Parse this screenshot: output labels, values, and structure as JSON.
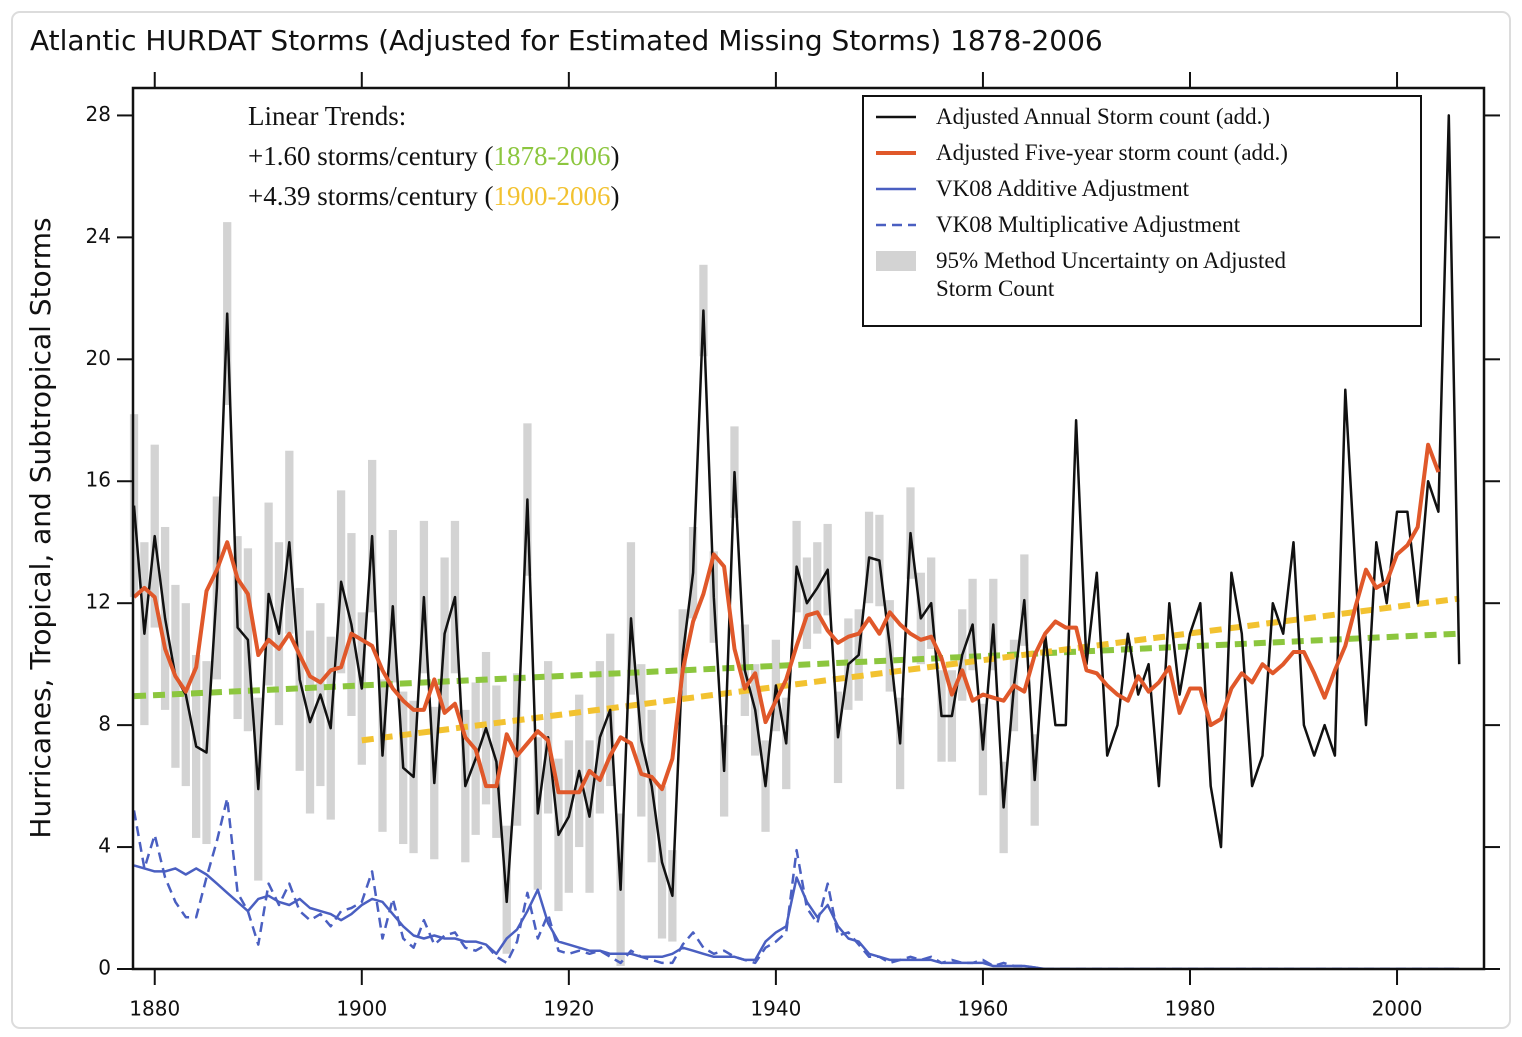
{
  "chart_data": {
    "type": "line",
    "title": "Atlantic HURDAT Storms (Adjusted for Estimated Missing Storms) 1878-2006",
    "y_label": "Hurricanes, Tropical, and Subtropical Storms",
    "xlim": [
      1877.9,
      2008.4
    ],
    "ylim": [
      0,
      28.9
    ],
    "xticks": [
      1880,
      1900,
      1920,
      1940,
      1960,
      1980,
      2000
    ],
    "yticks": [
      0,
      4,
      8,
      12,
      16,
      20,
      24,
      28
    ],
    "legend": "upper right",
    "x": [
      1878,
      1879,
      1880,
      1881,
      1882,
      1883,
      1884,
      1885,
      1886,
      1887,
      1888,
      1889,
      1890,
      1891,
      1892,
      1893,
      1894,
      1895,
      1896,
      1897,
      1898,
      1899,
      1900,
      1901,
      1902,
      1903,
      1904,
      1905,
      1906,
      1907,
      1908,
      1909,
      1910,
      1911,
      1912,
      1913,
      1914,
      1915,
      1916,
      1917,
      1918,
      1919,
      1920,
      1921,
      1922,
      1923,
      1924,
      1925,
      1926,
      1927,
      1928,
      1929,
      1930,
      1931,
      1932,
      1933,
      1934,
      1935,
      1936,
      1937,
      1938,
      1939,
      1940,
      1941,
      1942,
      1943,
      1944,
      1945,
      1946,
      1947,
      1948,
      1949,
      1950,
      1951,
      1952,
      1953,
      1954,
      1955,
      1956,
      1957,
      1958,
      1959,
      1960,
      1961,
      1962,
      1963,
      1964,
      1965,
      1966,
      1967,
      1968,
      1969,
      1970,
      1971,
      1972,
      1973,
      1974,
      1975,
      1976,
      1977,
      1978,
      1979,
      1980,
      1981,
      1982,
      1983,
      1984,
      1985,
      1986,
      1987,
      1988,
      1989,
      1990,
      1991,
      1992,
      1993,
      1994,
      1995,
      1996,
      1997,
      1998,
      1999,
      2000,
      2001,
      2002,
      2003,
      2004,
      2005,
      2006
    ],
    "uncertainty": {
      "name": "95% Method Uncertainty on Adjusted Storm Count",
      "color": "#d3d3d3",
      "high": [
        18.2,
        14,
        17.2,
        14.5,
        12.6,
        12,
        10.3,
        10.1,
        15.5,
        24.5,
        14.2,
        13.8,
        8.9,
        15.3,
        14,
        17,
        12.5,
        11.1,
        12,
        10.9,
        15.7,
        14.3,
        11.7,
        16.7,
        9.5,
        14.4,
        9.1,
        8.8,
        14.7,
        8.6,
        13.5,
        14.7,
        8.5,
        9.4,
        10.4,
        9.3,
        4.7,
        9.7,
        17.9,
        7.6,
        10.1,
        6.9,
        7.5,
        9,
        7.5,
        10.1,
        11,
        5.1,
        14,
        10,
        8.5,
        6,
        3.9,
        11.8,
        14.5,
        23.1,
        13.7,
        8,
        17.8,
        11.3,
        10,
        7.5,
        10.8,
        8.9,
        14.7,
        13.5,
        14,
        14.6,
        9.1,
        11.5,
        11.8,
        15,
        14.9,
        12.1,
        8.9,
        15.8,
        13,
        13.5,
        9.8,
        9.8,
        11.8,
        12.8,
        8.7,
        12.8,
        6.8,
        10.8,
        13.6,
        7.7,
        null,
        null,
        null,
        null,
        null,
        null,
        null,
        null,
        null,
        null,
        null,
        null,
        null,
        null,
        null,
        null,
        null,
        null,
        null,
        null,
        null,
        null,
        null,
        null,
        null,
        null,
        null,
        null,
        null,
        null,
        null,
        null,
        null,
        null,
        null,
        null,
        null,
        null,
        null,
        null,
        null
      ],
      "low": [
        12.2,
        8,
        11.2,
        8.5,
        6.6,
        6,
        4.3,
        4.1,
        9.5,
        18.5,
        8.2,
        7.8,
        2.9,
        9.3,
        8,
        11,
        6.5,
        5.1,
        6,
        4.9,
        9.7,
        8.3,
        6.7,
        11.7,
        4.5,
        9.4,
        4.1,
        3.8,
        9.7,
        3.6,
        8.5,
        9.7,
        3.5,
        4.4,
        5.4,
        4.3,
        0.5,
        4.7,
        12.9,
        2.6,
        5.1,
        1.9,
        2.5,
        4,
        2.5,
        5.1,
        6,
        0.1,
        9,
        5,
        3.5,
        1,
        0.9,
        8.8,
        11.5,
        20.1,
        10.7,
        5,
        14.8,
        8.3,
        7,
        4.5,
        7.8,
        5.9,
        11.7,
        10.5,
        11,
        11.6,
        6.1,
        8.5,
        8.8,
        12,
        11.9,
        9.1,
        5.9,
        12.8,
        10,
        10.5,
        6.8,
        6.8,
        8.8,
        9.8,
        5.7,
        9.8,
        3.8,
        7.8,
        10.6,
        4.7,
        null,
        null,
        null,
        null,
        null,
        null,
        null,
        null,
        null,
        null,
        null,
        null,
        null,
        null,
        null,
        null,
        null,
        null,
        null,
        null,
        null,
        null,
        null,
        null,
        null,
        null,
        null,
        null,
        null,
        null,
        null,
        null,
        null,
        null,
        null,
        null,
        null,
        null,
        null,
        null,
        null
      ]
    },
    "trend_lines": [
      {
        "name": "1878-2006",
        "prefix": "+1.60 storms/century (",
        "suffix": ")",
        "color": "#8cc63e",
        "x": [
          1878,
          2006
        ],
        "values": [
          8.95,
          11.0
        ]
      },
      {
        "name": "1900-2006",
        "prefix": "+4.39 storms/century (",
        "suffix": ")",
        "color": "#f2c230",
        "x": [
          1900,
          2006
        ],
        "values": [
          7.5,
          12.15
        ]
      }
    ],
    "annotation_heading": "Linear Trends:",
    "series": [
      {
        "name": "Adjusted Annual Storm count (add.)",
        "color": "#111111",
        "width": 2.5,
        "style": "solid",
        "values": [
          15.2,
          11,
          14.2,
          11.5,
          9.6,
          9,
          7.3,
          7.1,
          12.5,
          21.5,
          11.2,
          10.8,
          5.9,
          12.3,
          11,
          14,
          9.5,
          8.1,
          9,
          7.9,
          12.7,
          11.3,
          9.2,
          14.2,
          7,
          11.9,
          6.6,
          6.3,
          12.2,
          6.1,
          11,
          12.2,
          6,
          6.9,
          7.9,
          6.8,
          2.2,
          7.2,
          15.4,
          5.1,
          7.6,
          4.4,
          5,
          6.5,
          5,
          7.6,
          8.5,
          2.6,
          11.5,
          7.5,
          6,
          3.5,
          2.4,
          10.3,
          13,
          21.6,
          12.2,
          6.5,
          16.3,
          9.8,
          8.5,
          6,
          9.3,
          7.4,
          13.2,
          12,
          12.5,
          13.1,
          7.6,
          10,
          10.3,
          13.5,
          13.4,
          10.6,
          7.4,
          14.3,
          11.5,
          12,
          8.3,
          8.3,
          10.3,
          11.3,
          7.2,
          11.3,
          5.3,
          9.3,
          12.1,
          6.2,
          11,
          8,
          8,
          18,
          10,
          13,
          7,
          8,
          11,
          9,
          10,
          6,
          12,
          9,
          11,
          12,
          6,
          4,
          13,
          11,
          6,
          7,
          12,
          11,
          14,
          8,
          7,
          8,
          7,
          19,
          13,
          8,
          14,
          12,
          15,
          15,
          12,
          16,
          15,
          28,
          10
        ]
      },
      {
        "name": "Adjusted Five-year storm count (add.)",
        "color": "#e0582a",
        "width": 4,
        "style": "solid",
        "values": [
          12.2,
          12.5,
          12.2,
          10.5,
          9.6,
          9.1,
          9.9,
          12.4,
          13.1,
          14,
          12.8,
          12.3,
          10.3,
          10.8,
          10.5,
          11,
          10.3,
          9.6,
          9.4,
          9.8,
          9.9,
          11,
          10.8,
          10.6,
          9.8,
          9.2,
          8.8,
          8.5,
          8.5,
          9.5,
          8.4,
          8.7,
          7.6,
          7.2,
          6,
          6,
          7.7,
          7,
          7.4,
          7.8,
          7.5,
          5.8,
          5.8,
          5.8,
          6.5,
          6.2,
          7,
          7.6,
          7.4,
          6.4,
          6.3,
          5.9,
          6.9,
          9.8,
          11.4,
          12.3,
          13.6,
          13.2,
          10.5,
          9.2,
          9.7,
          8.1,
          8.8,
          9.5,
          10.6,
          11.6,
          11.7,
          11.1,
          10.7,
          10.9,
          11,
          11.5,
          11,
          11.7,
          11.3,
          11,
          10.8,
          10.9,
          10.2,
          9,
          9.8,
          8.8,
          9,
          8.9,
          8.8,
          9.3,
          9.1,
          10.3,
          11,
          11.4,
          11.2,
          11.2,
          9.8,
          9.7,
          9.3,
          9,
          8.8,
          9.6,
          9.1,
          9.4,
          9.9,
          8.4,
          9.2,
          9.2,
          8,
          8.2,
          9.2,
          9.7,
          9.4,
          10,
          9.7,
          10,
          10.4,
          10.4,
          9.7,
          8.9,
          9.8,
          10.6,
          11.9,
          13.1,
          12.5,
          12.7,
          13.6,
          13.9,
          14.5,
          17.2,
          16.3,
          null,
          null
        ]
      },
      {
        "name": "VK08 Additive Adjustment",
        "color": "#4a5fc1",
        "width": 2.5,
        "style": "solid",
        "values": [
          3.4,
          3.3,
          3.2,
          3.2,
          3.3,
          3.1,
          3.3,
          3.1,
          2.8,
          2.5,
          2.2,
          1.9,
          2.3,
          2.4,
          2.2,
          2.1,
          2.3,
          2.0,
          1.9,
          1.8,
          1.6,
          1.8,
          2.1,
          2.3,
          2.2,
          1.8,
          1.4,
          1.1,
          1.0,
          1.1,
          1.0,
          1.0,
          0.9,
          0.9,
          0.8,
          0.5,
          1.0,
          1.3,
          1.9,
          2.6,
          1.5,
          0.9,
          0.8,
          0.7,
          0.6,
          0.6,
          0.5,
          0.5,
          0.5,
          0.4,
          0.4,
          0.4,
          0.5,
          0.7,
          0.6,
          0.5,
          0.4,
          0.4,
          0.4,
          0.3,
          0.3,
          0.9,
          1.2,
          1.4,
          3.0,
          2.2,
          1.7,
          2.1,
          1.4,
          1.0,
          0.9,
          0.5,
          0.4,
          0.3,
          0.3,
          0.3,
          0.3,
          0.3,
          0.2,
          0.2,
          0.2,
          0.2,
          0.2,
          0.1,
          0.1,
          0.1,
          0.1,
          0.05,
          0,
          0,
          0,
          0,
          0,
          0,
          0,
          0,
          0,
          0,
          0,
          0,
          0,
          0,
          0,
          0,
          0,
          0,
          0,
          0,
          0,
          0,
          0,
          0,
          0,
          0,
          0,
          0,
          0,
          0,
          0,
          0,
          0,
          0,
          0,
          0,
          0,
          0,
          0,
          0,
          0
        ]
      },
      {
        "name": "VK08 Multiplicative Adjustment",
        "color": "#4a5fc1",
        "width": 2.5,
        "style": "dashed",
        "values": [
          5.2,
          3.3,
          4.4,
          3.0,
          2.2,
          1.7,
          1.7,
          3.0,
          4.2,
          5.6,
          2.5,
          1.9,
          0.8,
          2.8,
          2.1,
          2.8,
          1.9,
          1.6,
          1.8,
          1.4,
          1.9,
          2.0,
          2.2,
          3.2,
          1.0,
          2.3,
          1.0,
          0.7,
          1.6,
          0.8,
          1.1,
          1.2,
          0.7,
          0.6,
          0.8,
          0.4,
          0.2,
          0.9,
          2.5,
          1.0,
          1.8,
          0.6,
          0.5,
          0.6,
          0.5,
          0.6,
          0.4,
          0.2,
          0.6,
          0.4,
          0.3,
          0.2,
          0.2,
          0.8,
          1.2,
          0.7,
          0.5,
          0.6,
          0.4,
          0.3,
          0.2,
          0.7,
          0.9,
          1.2,
          3.9,
          2.0,
          1.5,
          2.8,
          1.1,
          1.2,
          0.8,
          0.4,
          0.4,
          0.2,
          0.3,
          0.4,
          0.3,
          0.4,
          0.2,
          0.3,
          0.2,
          0.2,
          0.3,
          0.1,
          0.2,
          0.1,
          0.1,
          0.05,
          0,
          0,
          0,
          0,
          0,
          0,
          0,
          0,
          0,
          0,
          0,
          0,
          0,
          0,
          0,
          0,
          0,
          0,
          0,
          0,
          0,
          0,
          0,
          0,
          0,
          0,
          0,
          0,
          0,
          0,
          0,
          0,
          0,
          0,
          0,
          0,
          0,
          0,
          0,
          0,
          0
        ]
      }
    ]
  }
}
